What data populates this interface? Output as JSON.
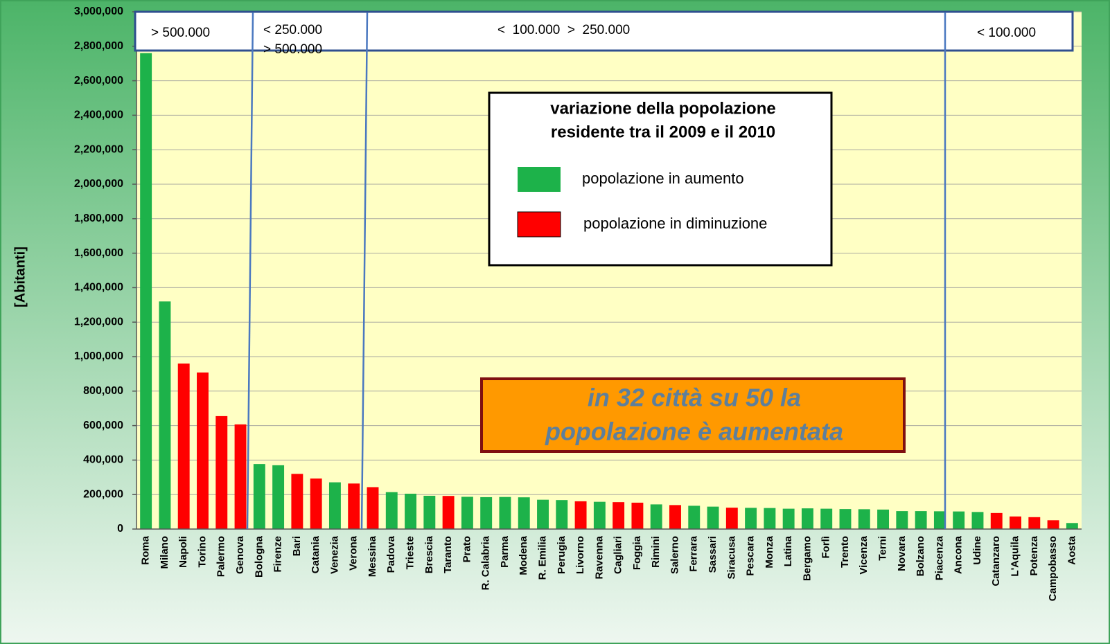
{
  "chart_data": {
    "type": "bar",
    "y_label": "[Abitanti]",
    "categories": [
      "Roma",
      "Milano",
      "Napoli",
      "Torino",
      "Palermo",
      "Genova",
      "Bologna",
      "Firenze",
      "Bari",
      "Catania",
      "Venezia",
      "Verona",
      "Messina",
      "Padova",
      "Trieste",
      "Brescia",
      "Taranto",
      "Prato",
      "R. Calabria",
      "Parma",
      "Modena",
      "R. Emilia",
      "Perugia",
      "Livorno",
      "Ravenna",
      "Cagliari",
      "Foggia",
      "Rimini",
      "Salerno",
      "Ferrara",
      "Sassari",
      "Siracusa",
      "Pescara",
      "Monza",
      "Latina",
      "Bergamo",
      "Forlì",
      "Trento",
      "Vicenza",
      "Terni",
      "Novara",
      "Bolzano",
      "Piacenza",
      "Ancona",
      "Udine",
      "Catanzaro",
      "L'Aquila",
      "Potenza",
      "Campobasso",
      "Aosta"
    ],
    "values": [
      2760000,
      1320000,
      960000,
      908000,
      655000,
      607000,
      377000,
      370000,
      320000,
      293000,
      271000,
      264000,
      243000,
      214000,
      205000,
      193000,
      192000,
      187000,
      185000,
      186000,
      184000,
      170000,
      168000,
      161000,
      158000,
      156000,
      153000,
      143000,
      139000,
      135000,
      130000,
      124000,
      123000,
      122000,
      118000,
      120000,
      118000,
      116000,
      115000,
      113000,
      104000,
      104000,
      103000,
      102000,
      99000,
      93000,
      73000,
      69000,
      51000,
      35000
    ],
    "colors": [
      "#1db24a",
      "#1db24a",
      "#ff0000",
      "#ff0000",
      "#ff0000",
      "#ff0000",
      "#1db24a",
      "#1db24a",
      "#ff0000",
      "#ff0000",
      "#1db24a",
      "#ff0000",
      "#ff0000",
      "#1db24a",
      "#1db24a",
      "#1db24a",
      "#ff0000",
      "#1db24a",
      "#1db24a",
      "#1db24a",
      "#1db24a",
      "#1db24a",
      "#1db24a",
      "#ff0000",
      "#1db24a",
      "#ff0000",
      "#ff0000",
      "#1db24a",
      "#ff0000",
      "#1db24a",
      "#1db24a",
      "#ff0000",
      "#1db24a",
      "#1db24a",
      "#1db24a",
      "#1db24a",
      "#1db24a",
      "#1db24a",
      "#1db24a",
      "#1db24a",
      "#1db24a",
      "#1db24a",
      "#1db24a",
      "#1db24a",
      "#1db24a",
      "#ff0000",
      "#ff0000",
      "#ff0000",
      "#ff0000",
      "#1db24a"
    ],
    "ylim": [
      0,
      3000000
    ],
    "yticks": [
      0,
      {
        "value": 200000,
        "label": "200,000"
      },
      {
        "value": 400000,
        "label": "400,000"
      },
      {
        "value": 600000,
        "label": "600,000"
      },
      {
        "value": 800000,
        "label": "800,000"
      },
      {
        "value": 1000000,
        "label": "1,000,000"
      },
      {
        "value": 1200000,
        "label": "1,200,000"
      },
      {
        "value": 1400000,
        "label": "1,400,000"
      },
      {
        "value": 1600000,
        "label": "1,600,000"
      },
      {
        "value": 1800000,
        "label": "1,800,000"
      },
      {
        "value": 2000000,
        "label": "2,000,000"
      },
      {
        "value": 2200000,
        "label": "2,200,000"
      },
      {
        "value": 2400000,
        "label": "2,400,000"
      },
      {
        "value": 2600000,
        "label": "2,600,000"
      },
      {
        "value": 2800000,
        "label": "2,800,000"
      },
      {
        "value": 3000000,
        "label": "3,000,000"
      }
    ],
    "grid": true,
    "groups": [
      {
        "lines": [
          "> 500.000"
        ]
      },
      {
        "lines": [
          "<  250.000",
          "> 500.000"
        ]
      },
      {
        "lines": [
          "<  100.000  >  250.000"
        ]
      },
      {
        "lines": [
          "< 100.000"
        ]
      }
    ],
    "legend": {
      "title": [
        "variazione della popolazione",
        "residente tra il  2009 e il 2010"
      ],
      "entries": [
        {
          "name": "popolazione in aumento",
          "color": "#1db24a"
        },
        {
          "name": "popolazione in diminuzione",
          "color": "#ff0000"
        }
      ]
    },
    "annotation": [
      "in 32 città su 50 la",
      "popolazione è aumentata"
    ]
  }
}
